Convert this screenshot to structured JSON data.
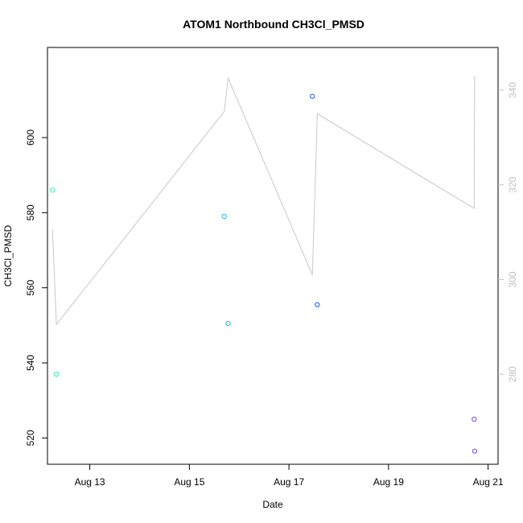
{
  "chart_data": {
    "type": "scatter",
    "title": "ATOM1 Northbound CH3Cl_PMSD",
    "xlabel": "Date",
    "ylabel": "CH3Cl_PMSD",
    "y2label": "",
    "x_ticks": [
      "Aug 13",
      "Aug 15",
      "Aug 17",
      "Aug 19",
      "Aug 21"
    ],
    "x_tick_days": [
      13,
      15,
      17,
      19,
      21
    ],
    "xlim_days": [
      12.15,
      21.2
    ],
    "ylim": [
      513,
      624
    ],
    "y_ticks": [
      520,
      540,
      560,
      580,
      600
    ],
    "y2lim": [
      261,
      349
    ],
    "y2_ticks": [
      280,
      300,
      320,
      340
    ],
    "grid": false,
    "legend": "none",
    "series": [
      {
        "type": "points",
        "axis": "left",
        "points": [
          {
            "x": "2023-08-12 06:00",
            "day": 12.25,
            "y": 586,
            "color": "#33e8b0"
          },
          {
            "x": "2023-08-12 08:00",
            "day": 12.33,
            "y": 537,
            "color": "#33e8b0"
          },
          {
            "x": "2023-08-15 17:00",
            "day": 15.7,
            "y": 579,
            "color": "#1ab8e8"
          },
          {
            "x": "2023-08-15 19:00",
            "day": 15.78,
            "y": 550.5,
            "color": "#1ab8e8"
          },
          {
            "x": "2023-08-17 11:00",
            "day": 17.47,
            "y": 611,
            "color": "#1a55e0"
          },
          {
            "x": "2023-08-17 14:00",
            "day": 17.57,
            "y": 555.5,
            "color": "#1a55e0"
          },
          {
            "x": "2023-08-20 17:00",
            "day": 20.72,
            "y": 525,
            "color": "#8040e0"
          },
          {
            "x": "2023-08-20 17:30",
            "day": 20.73,
            "y": 516.5,
            "color": "#8040e0"
          }
        ]
      },
      {
        "type": "line",
        "axis": "right",
        "color": "#c8c8c8",
        "points": [
          {
            "day": 12.25,
            "y": 310.5
          },
          {
            "day": 12.33,
            "y": 290.5
          },
          {
            "day": 15.7,
            "y": 335.5
          },
          {
            "day": 15.78,
            "y": 342.5
          },
          {
            "day": 17.47,
            "y": 301
          },
          {
            "day": 17.57,
            "y": 335
          },
          {
            "day": 20.72,
            "y": 315
          },
          {
            "day": 20.73,
            "y": 343
          }
        ]
      }
    ]
  }
}
